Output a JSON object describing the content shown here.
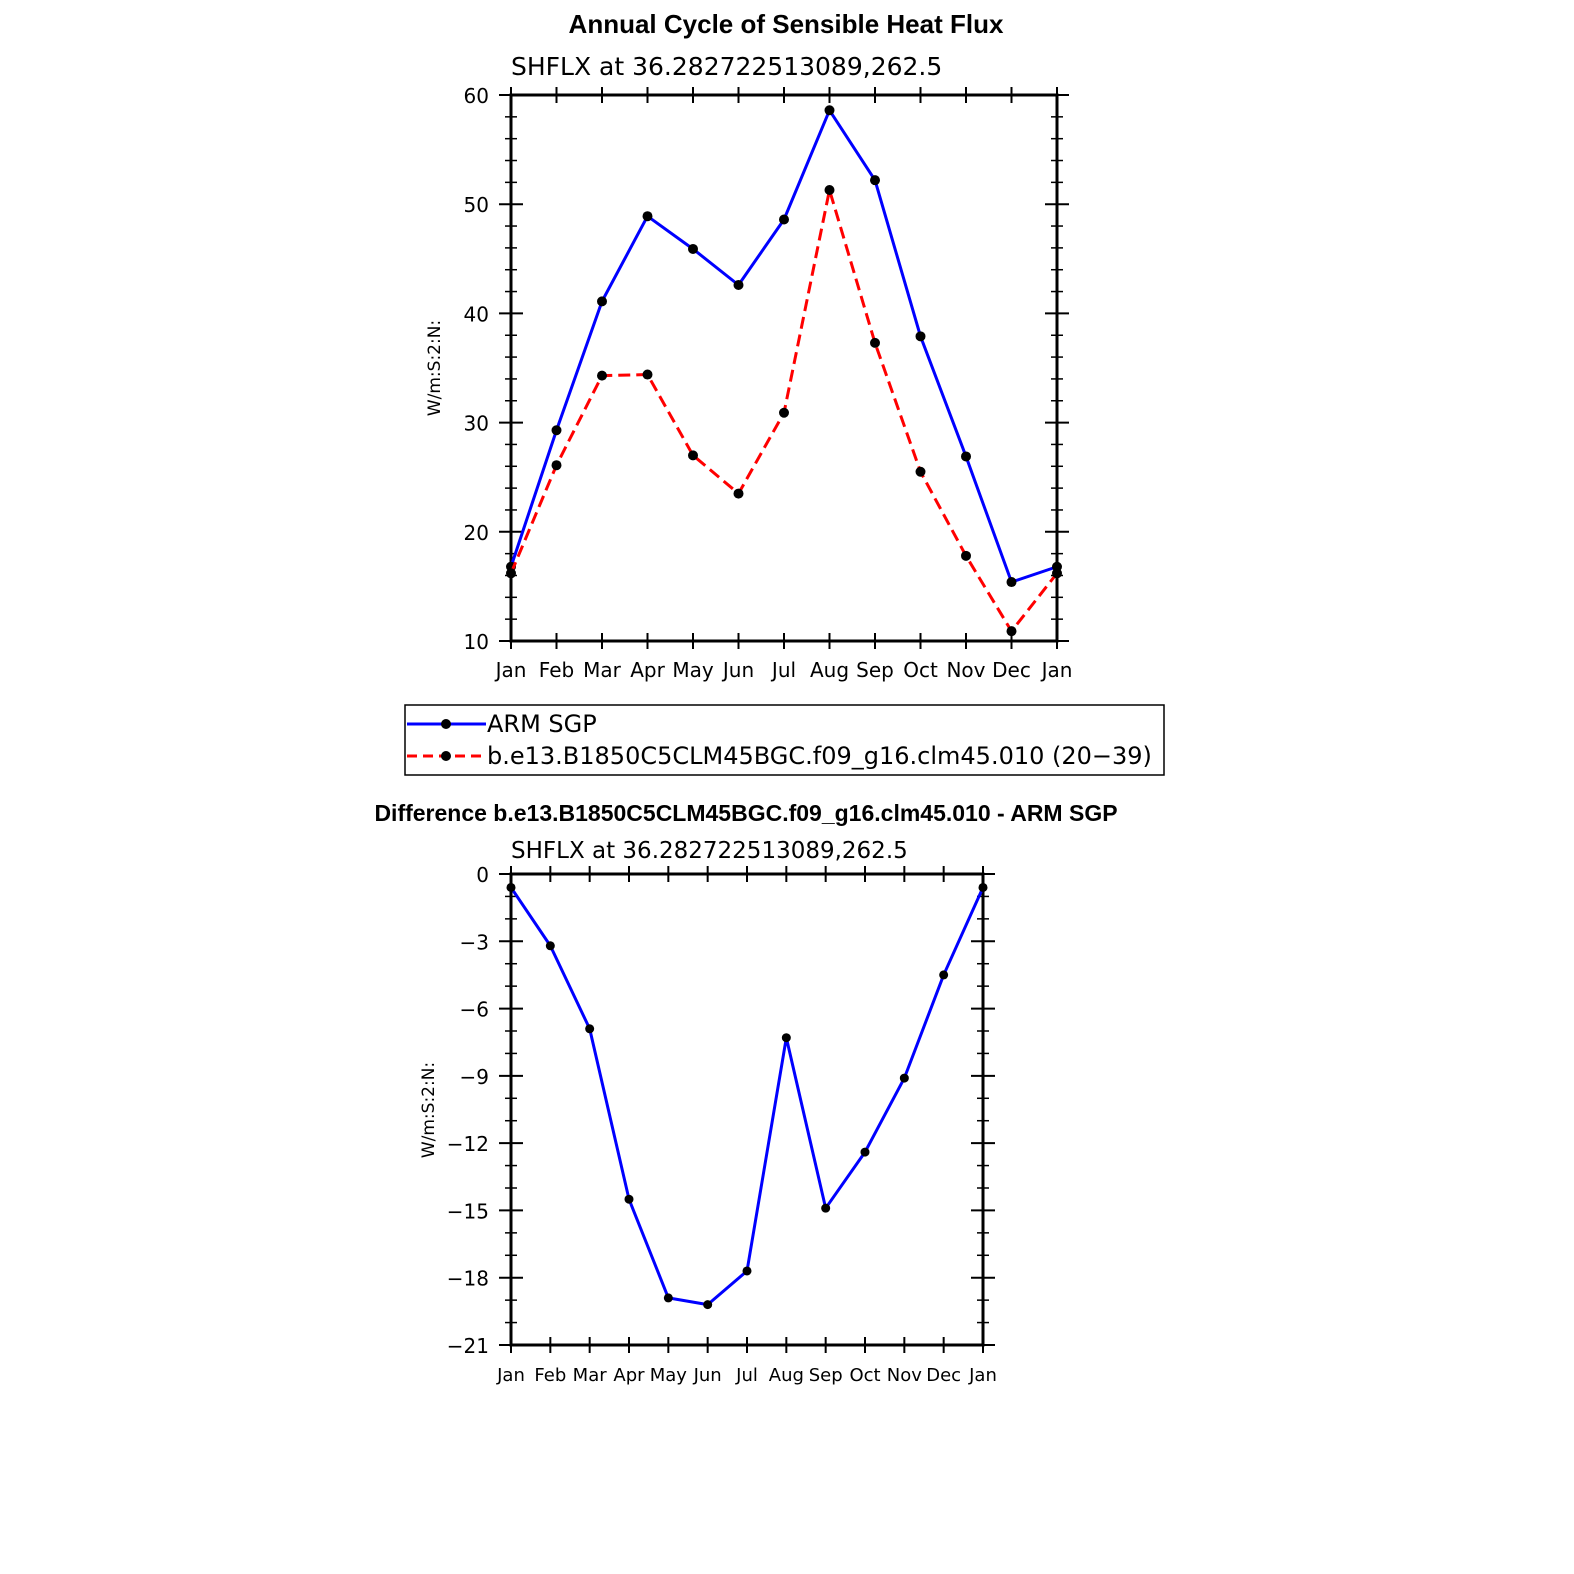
{
  "chart_data": [
    {
      "type": "line",
      "title": "Annual Cycle of Sensible Heat Flux",
      "subtitle": "SHFLX  at  36.282722513089,262.5",
      "ylabel": "W/m:S:2:N:",
      "categories": [
        "Jan",
        "Feb",
        "Mar",
        "Apr",
        "May",
        "Jun",
        "Jul",
        "Aug",
        "Sep",
        "Oct",
        "Nov",
        "Dec",
        "Jan"
      ],
      "ylim": [
        10,
        60
      ],
      "yticks": [
        "10",
        "20",
        "30",
        "40",
        "50",
        "60"
      ],
      "series": [
        {
          "name": "ARM  SGP",
          "color": "#0000ff",
          "dash": "solid",
          "values": [
            16.8,
            29.3,
            41.1,
            48.9,
            45.9,
            42.6,
            48.6,
            58.6,
            52.2,
            37.9,
            26.9,
            15.4,
            16.8
          ]
        },
        {
          "name": "b.e13.B1850C5CLM45BGC.f09_g16.clm45.010  (20−39)",
          "color": "#ff0000",
          "dash": "dashed",
          "values": [
            16.2,
            26.1,
            34.3,
            34.4,
            27.0,
            23.5,
            30.9,
            51.3,
            37.3,
            25.5,
            17.8,
            10.9,
            16.2
          ]
        }
      ],
      "legend": "below"
    },
    {
      "type": "line",
      "title": "Difference b.e13.B1850C5CLM45BGC.f09_g16.clm45.010 - ARM SGP",
      "subtitle": "SHFLX  at  36.282722513089,262.5",
      "ylabel": "W/m:S:2:N:",
      "categories": [
        "Jan",
        "Feb",
        "Mar",
        "Apr",
        "May",
        "Jun",
        "Jul",
        "Aug",
        "Sep",
        "Oct",
        "Nov",
        "Dec",
        "Jan"
      ],
      "ylim": [
        -21,
        0
      ],
      "yticks": [
        "−21",
        "−18",
        "−15",
        "−12",
        "−9",
        "−6",
        "−3",
        "0"
      ],
      "series": [
        {
          "color": "#0000ff",
          "dash": "solid",
          "values": [
            -0.6,
            -3.2,
            -6.9,
            -14.5,
            -18.9,
            -19.2,
            -17.7,
            -7.3,
            -14.9,
            -12.4,
            -9.1,
            -4.5,
            -0.6
          ]
        }
      ]
    }
  ]
}
